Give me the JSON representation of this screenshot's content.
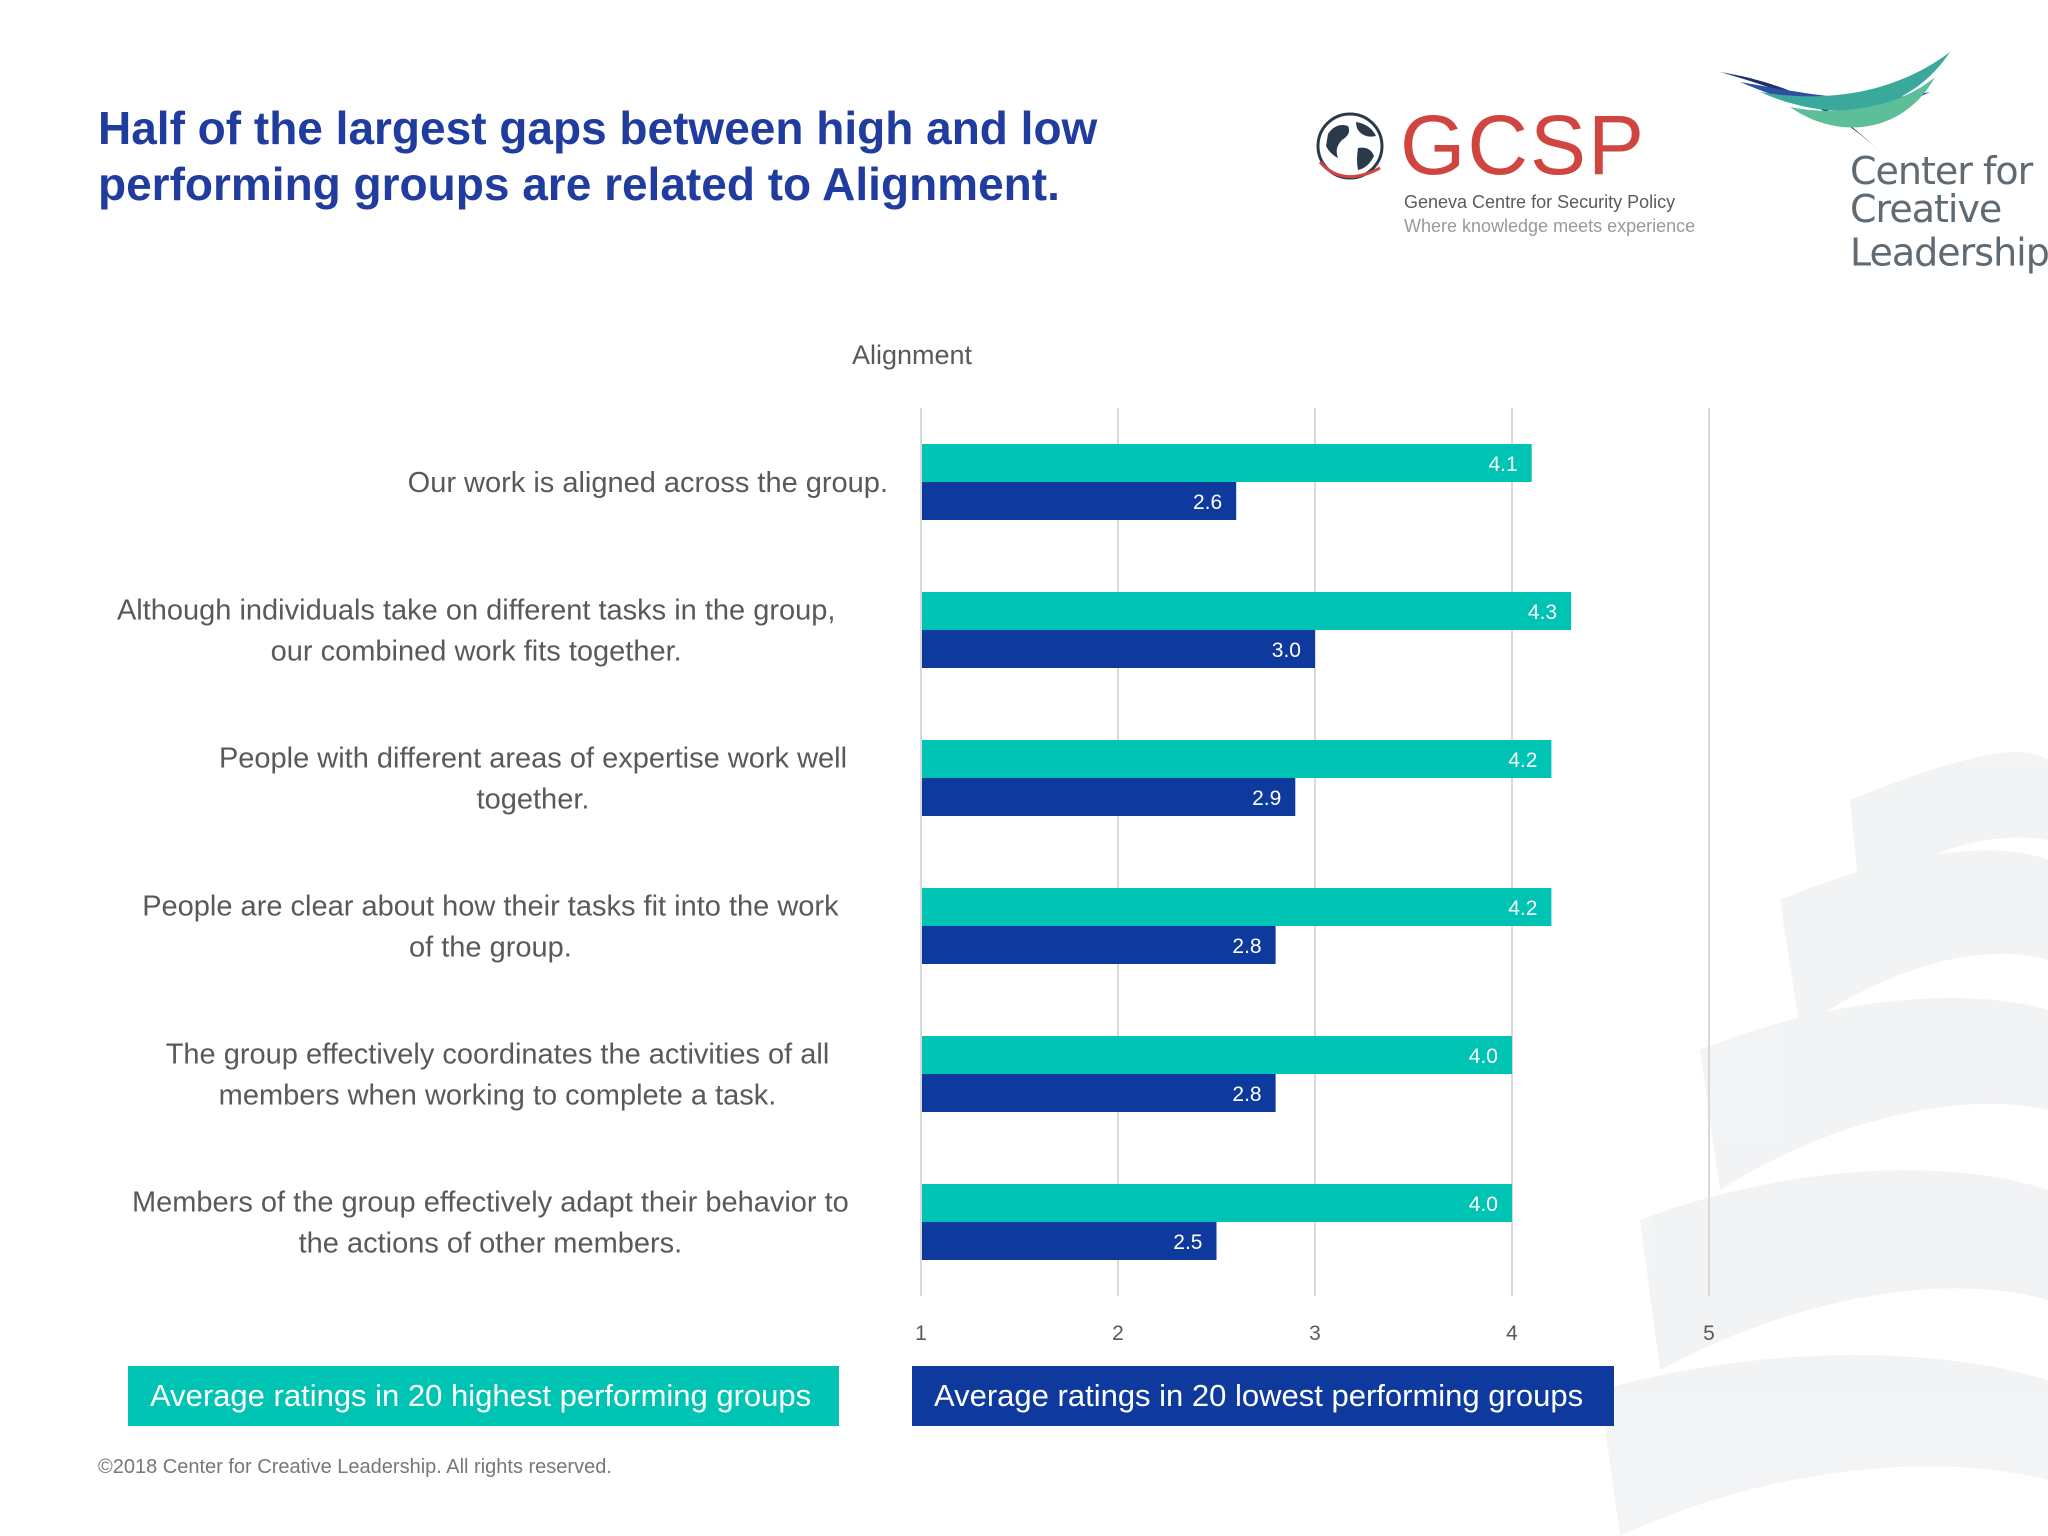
{
  "title": {
    "line1": "Half of the largest gaps between high and low",
    "line2": "performing groups are related to Alignment."
  },
  "logos": {
    "gcsp": {
      "name": "GCSP",
      "line1": "Geneva Centre for Security Policy",
      "line2": "Where knowledge meets experience"
    },
    "ccl": {
      "line1": "Center for",
      "line2": "Creative",
      "line3": "Leadership",
      "mark": "®"
    }
  },
  "chart_data": {
    "type": "bar",
    "orientation": "horizontal",
    "title": "Alignment",
    "categories": [
      "Our work is aligned across the group.",
      "Although individuals take on different tasks in the group, our combined work fits together.",
      "People with different areas of expertise work well together.",
      "People are clear about how their tasks fit into the work of the group.",
      "The group effectively coordinates the activities of all members when working to complete a task.",
      "Members of the group effectively adapt their behavior to the actions of other members."
    ],
    "category_lines": [
      [
        "Our work is aligned across the group."
      ],
      [
        "Although individuals take on different tasks in the group,",
        "our combined work fits together."
      ],
      [
        "People with different areas of expertise work well",
        "together."
      ],
      [
        "People are clear about how their tasks fit into the work",
        "of the group."
      ],
      [
        "The group effectively coordinates the activities of all",
        "members when working to complete a task."
      ],
      [
        "Members of the group effectively adapt their behavior to",
        "the actions of other members."
      ]
    ],
    "series": [
      {
        "name": "Average ratings in 20 highest performing groups",
        "color": "#00c4b3",
        "values": [
          4.1,
          4.3,
          4.2,
          4.2,
          4.0,
          4.0
        ],
        "labels": [
          "4.1",
          "4.3",
          "4.2",
          "4.2",
          "4.0",
          "4.0"
        ]
      },
      {
        "name": "Average ratings in 20 lowest performing groups",
        "color": "#0e3a9e",
        "values": [
          2.6,
          3.0,
          2.9,
          2.8,
          2.8,
          2.5
        ],
        "labels": [
          "2.6",
          "3.0",
          "2.9",
          "2.8",
          "2.8",
          "2.5"
        ]
      }
    ],
    "xlim": [
      1,
      5
    ],
    "xticks": [
      "1",
      "2",
      "3",
      "4",
      "5"
    ],
    "grid": true,
    "legend_position": "bottom"
  },
  "legend": {
    "high": "Average ratings in 20 highest performing groups",
    "low": "Average ratings in 20 lowest performing groups"
  },
  "copyright": "©2018 Center for Creative Leadership. All rights reserved."
}
